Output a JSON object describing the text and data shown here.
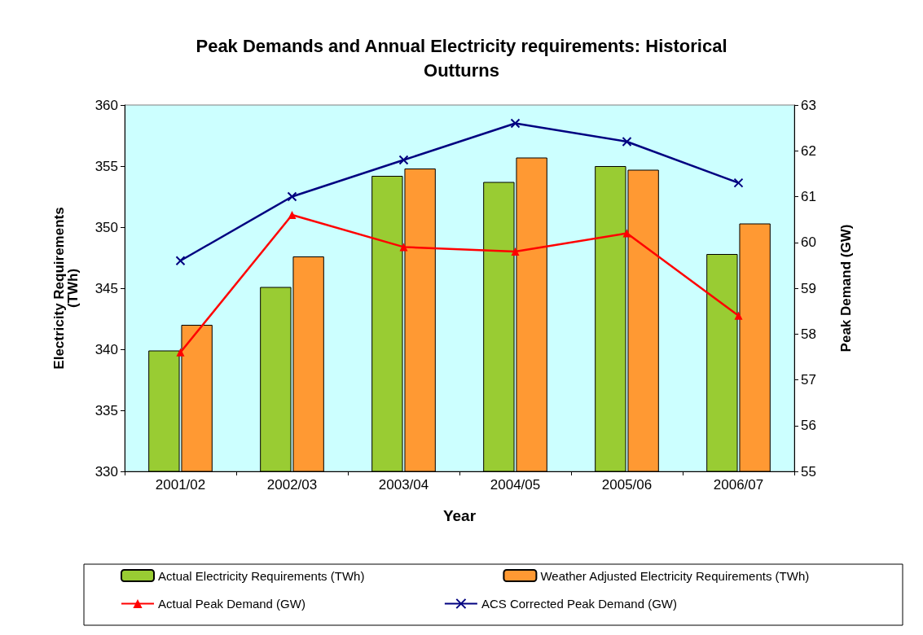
{
  "chart_data": {
    "type": "bar",
    "title": "Peak Demands and Annual Electricity requirements: Historical\nOutturns",
    "xlabel": "Year",
    "ylabel": "Electricity Requirements\n(TWh)",
    "y2label": "Peak Demand (GW)",
    "categories": [
      "2001/02",
      "2002/03",
      "2003/04",
      "2004/05",
      "2005/06",
      "2006/07"
    ],
    "series": [
      {
        "name": "Actual Electricity Requirements (TWh)",
        "color": "#99cc33",
        "values": [
          339.9,
          345.1,
          354.2,
          353.7,
          355.0,
          347.8
        ]
      },
      {
        "name": "Weather Adjusted Electricity Requirements (TWh)",
        "color": "#ff9933",
        "values": [
          342.0,
          347.6,
          354.8,
          355.7,
          354.7,
          350.3
        ]
      },
      {
        "name": "Actual Peak Demand (GW)",
        "type": "line",
        "axis": "y2",
        "marker": "triangle",
        "color": "#ff0000",
        "values": [
          57.6,
          60.6,
          59.9,
          59.8,
          60.2,
          58.4
        ]
      },
      {
        "name": "ACS Corrected Peak Demand (GW)",
        "type": "line",
        "axis": "y2",
        "marker": "cross",
        "color": "#000080",
        "values": [
          59.6,
          61.0,
          61.8,
          62.6,
          62.2,
          61.3
        ]
      }
    ],
    "ylim": [
      330,
      360
    ],
    "yticks": [
      330,
      335,
      340,
      345,
      350,
      355,
      360
    ],
    "y2lim": [
      55,
      63
    ],
    "y2ticks": [
      55,
      56,
      57,
      58,
      59,
      60,
      61,
      62,
      63
    ],
    "grid": false,
    "legend": "bottom"
  }
}
